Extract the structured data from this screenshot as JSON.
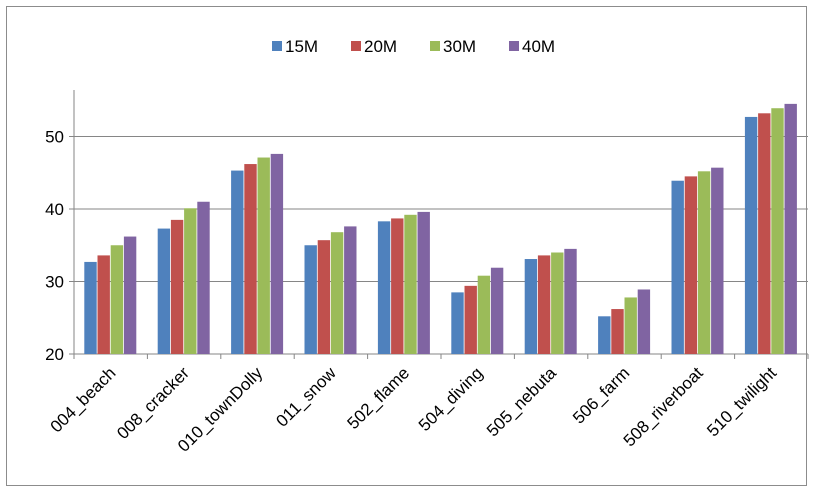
{
  "chart_data": {
    "type": "bar",
    "title": "",
    "xlabel": "",
    "ylabel": "",
    "categories": [
      "004_beach",
      "008_cracker",
      "010_townDolly",
      "011_snow",
      "502_flame",
      "504_diving",
      "505_nebuta",
      "506_farm",
      "508_riverboat",
      "510_twilight"
    ],
    "series": [
      {
        "name": "15M",
        "color": "#4f81bd",
        "values": [
          32.7,
          37.3,
          45.3,
          35.0,
          38.3,
          28.5,
          33.1,
          25.2,
          43.9,
          52.7
        ]
      },
      {
        "name": "20M",
        "color": "#c0504d",
        "values": [
          33.6,
          38.5,
          46.2,
          35.7,
          38.7,
          29.4,
          33.6,
          26.2,
          44.5,
          53.2
        ]
      },
      {
        "name": "30M",
        "color": "#9bbb59",
        "values": [
          35.0,
          40.1,
          47.1,
          36.8,
          39.2,
          30.8,
          34.0,
          27.8,
          45.2,
          53.9
        ]
      },
      {
        "name": "40M",
        "color": "#8064a2",
        "values": [
          36.2,
          41.0,
          47.6,
          37.6,
          39.6,
          31.9,
          34.5,
          28.9,
          45.7,
          54.5
        ]
      }
    ],
    "ylim": [
      20,
      60
    ],
    "yticks": [
      20,
      30,
      40,
      50
    ],
    "grid": true,
    "legend_position": "top"
  }
}
